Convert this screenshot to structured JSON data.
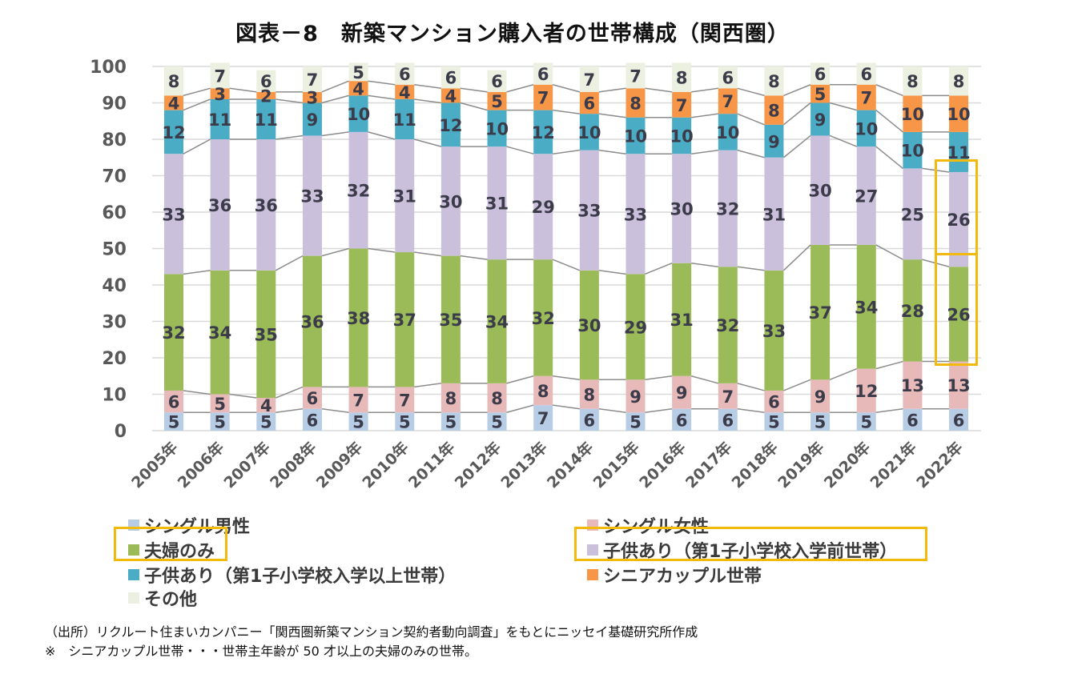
{
  "chart_data": {
    "type": "bar",
    "stacked": true,
    "title": "図表－8　新築マンション購入者の世帯構成（関西圏）",
    "xlabel": "",
    "ylabel": "",
    "ylim": [
      0,
      100
    ],
    "yticks": [
      0,
      10,
      20,
      30,
      40,
      50,
      60,
      70,
      80,
      90,
      100
    ],
    "grid": true,
    "legend_position": "bottom",
    "categories": [
      "2005年",
      "2006年",
      "2007年",
      "2008年",
      "2009年",
      "2010年",
      "2011年",
      "2012年",
      "2013年",
      "2014年",
      "2015年",
      "2016年",
      "2017年",
      "2018年",
      "2019年",
      "2020年",
      "2021年",
      "2022年"
    ],
    "series": [
      {
        "name": "シングル男性",
        "color": "#b7cde6",
        "values": [
          5,
          5,
          5,
          6,
          5,
          5,
          5,
          5,
          7,
          6,
          5,
          6,
          6,
          5,
          5,
          5,
          6,
          6
        ]
      },
      {
        "name": "シングル女性",
        "color": "#e7b9b8",
        "values": [
          6,
          5,
          4,
          6,
          7,
          7,
          8,
          8,
          8,
          8,
          9,
          9,
          7,
          6,
          9,
          12,
          13,
          13
        ]
      },
      {
        "name": "夫婦のみ",
        "color": "#9bbb59",
        "values": [
          32,
          34,
          35,
          36,
          38,
          37,
          35,
          34,
          32,
          30,
          29,
          31,
          32,
          33,
          37,
          34,
          28,
          26
        ]
      },
      {
        "name": "子供あり（第1子小学校入学前世帯）",
        "color": "#cbc0dc",
        "values": [
          33,
          36,
          36,
          33,
          32,
          31,
          30,
          31,
          29,
          33,
          33,
          30,
          32,
          31,
          30,
          27,
          25,
          26
        ]
      },
      {
        "name": "子供あり（第1子小学校入学以上世帯）",
        "color": "#4bacc6",
        "values": [
          12,
          11,
          11,
          9,
          10,
          11,
          12,
          10,
          12,
          10,
          10,
          10,
          10,
          9,
          9,
          10,
          10,
          11
        ]
      },
      {
        "name": "シニアカップル世帯",
        "color": "#f79646",
        "values": [
          4,
          3,
          2,
          3,
          4,
          4,
          4,
          5,
          7,
          6,
          8,
          7,
          7,
          8,
          5,
          7,
          10,
          10
        ]
      },
      {
        "name": "その他",
        "color": "#ebf0e0",
        "values": [
          8,
          7,
          6,
          7,
          5,
          6,
          6,
          6,
          6,
          7,
          7,
          8,
          6,
          8,
          6,
          6,
          8,
          8
        ]
      }
    ],
    "annotations": [
      {
        "type": "highlight-box",
        "target": "2022年 子供あり（第1子小学校入学前世帯）"
      },
      {
        "type": "highlight-box",
        "target": "2022年 夫婦のみ"
      },
      {
        "type": "highlight-box",
        "target": "legend 夫婦のみ"
      },
      {
        "type": "highlight-box",
        "target": "legend 子供あり（第1子小学校入学前世帯）"
      }
    ]
  },
  "legend": {
    "items": [
      "シングル男性",
      "シングル女性",
      "夫婦のみ",
      "子供あり（第1子小学校入学前世帯）",
      "子供あり（第1子小学校入学以上世帯）",
      "シニアカップル世帯",
      "その他"
    ]
  },
  "footnotes": {
    "source": "（出所）リクルート住まいカンパニー「関西圏新築マンション契約者動向調査」をもとにニッセイ基礎研究所作成",
    "note": "※　シニアカップル世帯・・・世帯主年齢が 50 才以上の夫婦のみの世帯。"
  },
  "colors": {
    "highlight": "#f2b90f",
    "grid": "#d9d9d9",
    "connector": "#8c8c8c",
    "label": "#3b3b4a"
  }
}
